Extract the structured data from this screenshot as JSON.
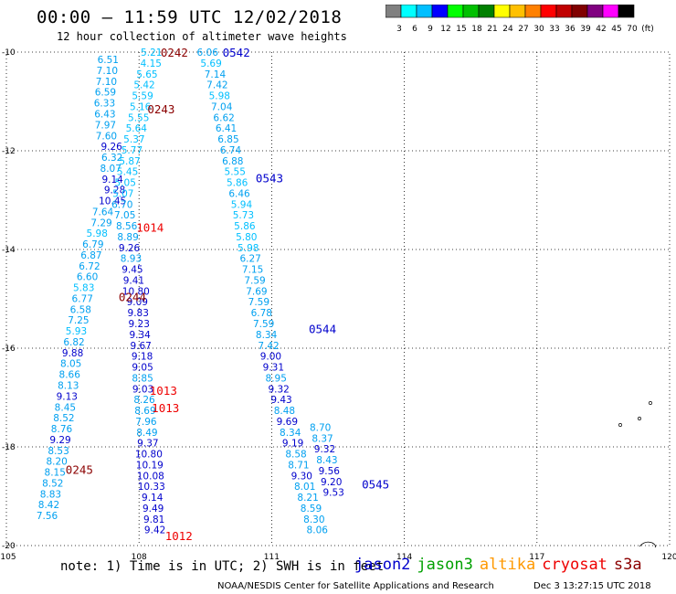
{
  "header": {
    "title": "00:00 – 11:59 UTC 12/02/2018",
    "subtitle": "12 hour collection of altimeter wave heights"
  },
  "colorbar": {
    "labels": [
      "3",
      "6",
      "9",
      "12",
      "15",
      "18",
      "21",
      "24",
      "27",
      "30",
      "33",
      "36",
      "39",
      "42",
      "45",
      "70",
      "(ft)"
    ],
    "colors": [
      "#808080",
      "#00ffff",
      "#00bfff",
      "#0000ff",
      "#00ff00",
      "#00c000",
      "#008000",
      "#ffff00",
      "#ffc000",
      "#ff8000",
      "#ff0000",
      "#c00000",
      "#800000",
      "#800080",
      "#ff00ff",
      "#000000"
    ]
  },
  "footer": {
    "note": "note: 1) Time is in UTC; 2) SWH is in feet",
    "credit": "NOAA/NESDIS Center for Satellite Applications and Research",
    "date": "Dec  3 13:27:15 UTC 2018"
  },
  "legend": [
    {
      "name": "jason2",
      "color": "#0000cc"
    },
    {
      "name": "jason3",
      "color": "#00a000"
    },
    {
      "name": "altika",
      "color": "#ff9900"
    },
    {
      "name": "cryosat",
      "color": "#ee0000"
    },
    {
      "name": "s3a",
      "color": "#8b0000"
    }
  ],
  "chart_data": {
    "type": "scatter",
    "xlim": [
      105,
      120
    ],
    "ylim": [
      -20,
      -10
    ],
    "x_ticks": [
      105,
      108,
      111,
      114,
      117,
      120
    ],
    "x_tick_labels": [
      "105",
      "108",
      "111",
      "114",
      "117",
      "120"
    ],
    "y_ticks": [
      -10,
      -12,
      -14,
      -16,
      -18,
      -20
    ],
    "y_tick_labels": [
      "-10",
      "-12",
      "-14",
      "-16",
      "-18",
      "-20"
    ],
    "grid": true,
    "time_labels": [
      {
        "text": "0242",
        "x": 108.8,
        "y": -10.0,
        "color": "#8b0000"
      },
      {
        "text": "0542",
        "x": 110.2,
        "y": -10.0,
        "color": "#0000cc"
      },
      {
        "text": "0243",
        "x": 108.5,
        "y": -11.15,
        "color": "#8b0000"
      },
      {
        "text": "0543",
        "x": 110.95,
        "y": -12.55,
        "color": "#0000cc"
      },
      {
        "text": "1014",
        "x": 108.25,
        "y": -13.55,
        "color": "#ee0000"
      },
      {
        "text": "0244",
        "x": 107.85,
        "y": -14.95,
        "color": "#8b0000"
      },
      {
        "text": "0544",
        "x": 112.15,
        "y": -15.6,
        "color": "#0000cc"
      },
      {
        "text": "1013",
        "x": 108.55,
        "y": -16.85,
        "color": "#ee0000"
      },
      {
        "text": "1013",
        "x": 108.6,
        "y": -17.2,
        "color": "#ee0000"
      },
      {
        "text": "0245",
        "x": 106.65,
        "y": -18.45,
        "color": "#8b0000"
      },
      {
        "text": "0545",
        "x": 113.35,
        "y": -18.75,
        "color": "#0000cc"
      },
      {
        "text": "1012",
        "x": 108.9,
        "y": -19.8,
        "color": "#ee0000"
      }
    ],
    "series": [
      {
        "name": "",
        "points": [
          {
            "x": 107.3,
            "y": -10.15,
            "v": "6.51"
          },
          {
            "x": 107.28,
            "y": -10.37,
            "v": "7.10"
          },
          {
            "x": 107.26,
            "y": -10.59,
            "v": "7.10"
          },
          {
            "x": 107.24,
            "y": -10.81,
            "v": "6.59"
          },
          {
            "x": 107.22,
            "y": -11.03,
            "v": "6.33"
          },
          {
            "x": 107.23,
            "y": -11.25,
            "v": "6.43"
          },
          {
            "x": 107.24,
            "y": -11.47,
            "v": "7.97"
          },
          {
            "x": 107.26,
            "y": -11.69,
            "v": "7.60"
          },
          {
            "x": 107.38,
            "y": -11.91,
            "v": "9.26"
          },
          {
            "x": 107.39,
            "y": -12.13,
            "v": "6.32"
          },
          {
            "x": 107.36,
            "y": -12.35,
            "v": "8.07"
          },
          {
            "x": 107.4,
            "y": -12.57,
            "v": "9.14"
          },
          {
            "x": 107.45,
            "y": -12.79,
            "v": "9.28"
          },
          {
            "x": 107.4,
            "y": -13.01,
            "v": "10.45"
          },
          {
            "x": 107.18,
            "y": -13.23,
            "v": "7.64"
          },
          {
            "x": 107.15,
            "y": -13.45,
            "v": "7.29"
          },
          {
            "x": 107.05,
            "y": -13.67,
            "v": "5.98"
          },
          {
            "x": 106.96,
            "y": -13.89,
            "v": "6.79"
          },
          {
            "x": 106.92,
            "y": -14.11,
            "v": "6.87"
          },
          {
            "x": 106.88,
            "y": -14.33,
            "v": "6.72"
          },
          {
            "x": 106.83,
            "y": -14.55,
            "v": "6.60"
          },
          {
            "x": 106.75,
            "y": -14.77,
            "v": "5.83"
          },
          {
            "x": 106.72,
            "y": -14.99,
            "v": "6.77"
          },
          {
            "x": 106.68,
            "y": -15.21,
            "v": "6.58"
          },
          {
            "x": 106.63,
            "y": -15.43,
            "v": "7.25"
          },
          {
            "x": 106.58,
            "y": -15.65,
            "v": "5.93"
          },
          {
            "x": 106.53,
            "y": -15.87,
            "v": "6.82"
          },
          {
            "x": 106.5,
            "y": -16.09,
            "v": "9.88"
          },
          {
            "x": 106.46,
            "y": -16.31,
            "v": "8.05"
          },
          {
            "x": 106.43,
            "y": -16.53,
            "v": "8.66"
          },
          {
            "x": 106.4,
            "y": -16.75,
            "v": "8.13"
          },
          {
            "x": 106.37,
            "y": -16.97,
            "v": "9.13"
          },
          {
            "x": 106.33,
            "y": -17.19,
            "v": "8.45"
          },
          {
            "x": 106.3,
            "y": -17.41,
            "v": "8.52"
          },
          {
            "x": 106.25,
            "y": -17.63,
            "v": "8.76"
          },
          {
            "x": 106.22,
            "y": -17.85,
            "v": "9.29"
          },
          {
            "x": 106.18,
            "y": -18.07,
            "v": "8.53"
          },
          {
            "x": 106.14,
            "y": -18.29,
            "v": "8.20"
          },
          {
            "x": 106.1,
            "y": -18.51,
            "v": "8.15"
          },
          {
            "x": 106.05,
            "y": -18.73,
            "v": "8.52"
          },
          {
            "x": 106.0,
            "y": -18.95,
            "v": "8.83"
          },
          {
            "x": 105.96,
            "y": -19.17,
            "v": "8.42"
          },
          {
            "x": 105.92,
            "y": -19.39,
            "v": "7.56"
          }
        ]
      },
      {
        "name": "",
        "points": [
          {
            "x": 108.28,
            "y": -10.0,
            "v": "5.21"
          },
          {
            "x": 108.27,
            "y": -10.22,
            "v": "4.15"
          },
          {
            "x": 108.18,
            "y": -10.44,
            "v": "5.65"
          },
          {
            "x": 108.12,
            "y": -10.66,
            "v": "5.42"
          },
          {
            "x": 108.08,
            "y": -10.88,
            "v": "5.59"
          },
          {
            "x": 108.03,
            "y": -11.1,
            "v": "5.16"
          },
          {
            "x": 107.99,
            "y": -11.32,
            "v": "5.55"
          },
          {
            "x": 107.94,
            "y": -11.54,
            "v": "5.64"
          },
          {
            "x": 107.89,
            "y": -11.76,
            "v": "5.37"
          },
          {
            "x": 107.84,
            "y": -11.98,
            "v": "5.77"
          },
          {
            "x": 107.79,
            "y": -12.2,
            "v": "5.87"
          },
          {
            "x": 107.74,
            "y": -12.42,
            "v": "5.45"
          },
          {
            "x": 107.69,
            "y": -12.64,
            "v": "5.05"
          },
          {
            "x": 107.64,
            "y": -12.86,
            "v": "5.07"
          },
          {
            "x": 107.62,
            "y": -13.08,
            "v": "6.70"
          },
          {
            "x": 107.68,
            "y": -13.3,
            "v": "7.05"
          },
          {
            "x": 107.72,
            "y": -13.52,
            "v": "8.56"
          },
          {
            "x": 107.75,
            "y": -13.74,
            "v": "8.89"
          },
          {
            "x": 107.78,
            "y": -13.96,
            "v": "9.26"
          },
          {
            "x": 107.82,
            "y": -14.18,
            "v": "8.93"
          },
          {
            "x": 107.85,
            "y": -14.4,
            "v": "9.45"
          },
          {
            "x": 107.88,
            "y": -14.62,
            "v": "9.41"
          },
          {
            "x": 107.93,
            "y": -14.84,
            "v": "10.80"
          },
          {
            "x": 107.96,
            "y": -15.06,
            "v": "9.09"
          },
          {
            "x": 107.98,
            "y": -15.28,
            "v": "9.83"
          },
          {
            "x": 108.0,
            "y": -15.5,
            "v": "9.23"
          },
          {
            "x": 108.02,
            "y": -15.72,
            "v": "9.34"
          },
          {
            "x": 108.04,
            "y": -15.94,
            "v": "9.67"
          },
          {
            "x": 108.07,
            "y": -16.16,
            "v": "9.18"
          },
          {
            "x": 108.08,
            "y": -16.38,
            "v": "9.05"
          },
          {
            "x": 108.08,
            "y": -16.6,
            "v": "8.85"
          },
          {
            "x": 108.09,
            "y": -16.82,
            "v": "9.03"
          },
          {
            "x": 108.12,
            "y": -17.04,
            "v": "8.26"
          },
          {
            "x": 108.14,
            "y": -17.26,
            "v": "8.69"
          },
          {
            "x": 108.16,
            "y": -17.48,
            "v": "7.96"
          },
          {
            "x": 108.18,
            "y": -17.7,
            "v": "8.49"
          },
          {
            "x": 108.2,
            "y": -17.92,
            "v": "9.37"
          },
          {
            "x": 108.22,
            "y": -18.14,
            "v": "10.80"
          },
          {
            "x": 108.24,
            "y": -18.36,
            "v": "10.19"
          },
          {
            "x": 108.26,
            "y": -18.58,
            "v": "10.08"
          },
          {
            "x": 108.28,
            "y": -18.8,
            "v": "10.33"
          },
          {
            "x": 108.3,
            "y": -19.02,
            "v": "9.14"
          },
          {
            "x": 108.32,
            "y": -19.24,
            "v": "9.49"
          },
          {
            "x": 108.34,
            "y": -19.46,
            "v": "9.81"
          },
          {
            "x": 108.36,
            "y": -19.68,
            "v": "9.42"
          }
        ]
      },
      {
        "name": "",
        "points": [
          {
            "x": 109.55,
            "y": -10.0,
            "v": "6.06"
          },
          {
            "x": 109.63,
            "y": -10.22,
            "v": "5.69"
          },
          {
            "x": 109.72,
            "y": -10.44,
            "v": "7.14"
          },
          {
            "x": 109.77,
            "y": -10.66,
            "v": "7.42"
          },
          {
            "x": 109.82,
            "y": -10.88,
            "v": "5.98"
          },
          {
            "x": 109.87,
            "y": -11.1,
            "v": "7.04"
          },
          {
            "x": 109.92,
            "y": -11.32,
            "v": "6.62"
          },
          {
            "x": 109.97,
            "y": -11.54,
            "v": "6.41"
          },
          {
            "x": 110.02,
            "y": -11.76,
            "v": "6.85"
          },
          {
            "x": 110.07,
            "y": -11.98,
            "v": "6.74"
          },
          {
            "x": 110.12,
            "y": -12.2,
            "v": "6.88"
          },
          {
            "x": 110.17,
            "y": -12.42,
            "v": "5.55"
          },
          {
            "x": 110.22,
            "y": -12.64,
            "v": "5.86"
          },
          {
            "x": 110.27,
            "y": -12.86,
            "v": "6.46"
          },
          {
            "x": 110.32,
            "y": -13.08,
            "v": "5.94"
          },
          {
            "x": 110.36,
            "y": -13.3,
            "v": "5.73"
          },
          {
            "x": 110.39,
            "y": -13.52,
            "v": "5.86"
          },
          {
            "x": 110.43,
            "y": -13.74,
            "v": "5.80"
          },
          {
            "x": 110.47,
            "y": -13.96,
            "v": "5.98"
          },
          {
            "x": 110.52,
            "y": -14.18,
            "v": "6.27"
          },
          {
            "x": 110.57,
            "y": -14.4,
            "v": "7.15"
          },
          {
            "x": 110.62,
            "y": -14.62,
            "v": "7.59"
          },
          {
            "x": 110.66,
            "y": -14.84,
            "v": "7.69"
          },
          {
            "x": 110.71,
            "y": -15.06,
            "v": "7.59"
          },
          {
            "x": 110.77,
            "y": -15.28,
            "v": "6.78"
          },
          {
            "x": 110.82,
            "y": -15.5,
            "v": "7.59"
          },
          {
            "x": 110.88,
            "y": -15.72,
            "v": "8.34"
          },
          {
            "x": 110.93,
            "y": -15.94,
            "v": "7.42"
          },
          {
            "x": 110.98,
            "y": -16.16,
            "v": "9.00"
          },
          {
            "x": 111.04,
            "y": -16.38,
            "v": "9.31"
          },
          {
            "x": 111.1,
            "y": -16.6,
            "v": "8.95"
          },
          {
            "x": 111.16,
            "y": -16.82,
            "v": "9.32"
          },
          {
            "x": 111.22,
            "y": -17.04,
            "v": "9.43"
          },
          {
            "x": 111.29,
            "y": -17.26,
            "v": "8.48"
          },
          {
            "x": 111.35,
            "y": -17.48,
            "v": "9.69"
          },
          {
            "x": 111.42,
            "y": -17.7,
            "v": "8.34"
          },
          {
            "x": 111.48,
            "y": -17.92,
            "v": "9.19"
          },
          {
            "x": 111.55,
            "y": -18.14,
            "v": "8.58"
          },
          {
            "x": 111.61,
            "y": -18.36,
            "v": "8.71"
          },
          {
            "x": 111.68,
            "y": -18.58,
            "v": "9.30"
          },
          {
            "x": 111.75,
            "y": -18.8,
            "v": "8.01"
          },
          {
            "x": 111.82,
            "y": -19.02,
            "v": "8.21"
          },
          {
            "x": 111.89,
            "y": -19.24,
            "v": "8.59"
          },
          {
            "x": 111.96,
            "y": -19.46,
            "v": "8.30"
          },
          {
            "x": 112.03,
            "y": -19.68,
            "v": "8.06"
          }
        ]
      },
      {
        "name": "",
        "points": [
          {
            "x": 112.1,
            "y": -17.6,
            "v": "8.70"
          },
          {
            "x": 112.15,
            "y": -17.82,
            "v": "8.37"
          },
          {
            "x": 112.2,
            "y": -18.04,
            "v": "9.32"
          },
          {
            "x": 112.25,
            "y": -18.26,
            "v": "8.43"
          },
          {
            "x": 112.3,
            "y": -18.48,
            "v": "9.56"
          },
          {
            "x": 112.35,
            "y": -18.7,
            "v": "9.20"
          },
          {
            "x": 112.4,
            "y": -18.92,
            "v": "9.53"
          }
        ]
      }
    ]
  }
}
